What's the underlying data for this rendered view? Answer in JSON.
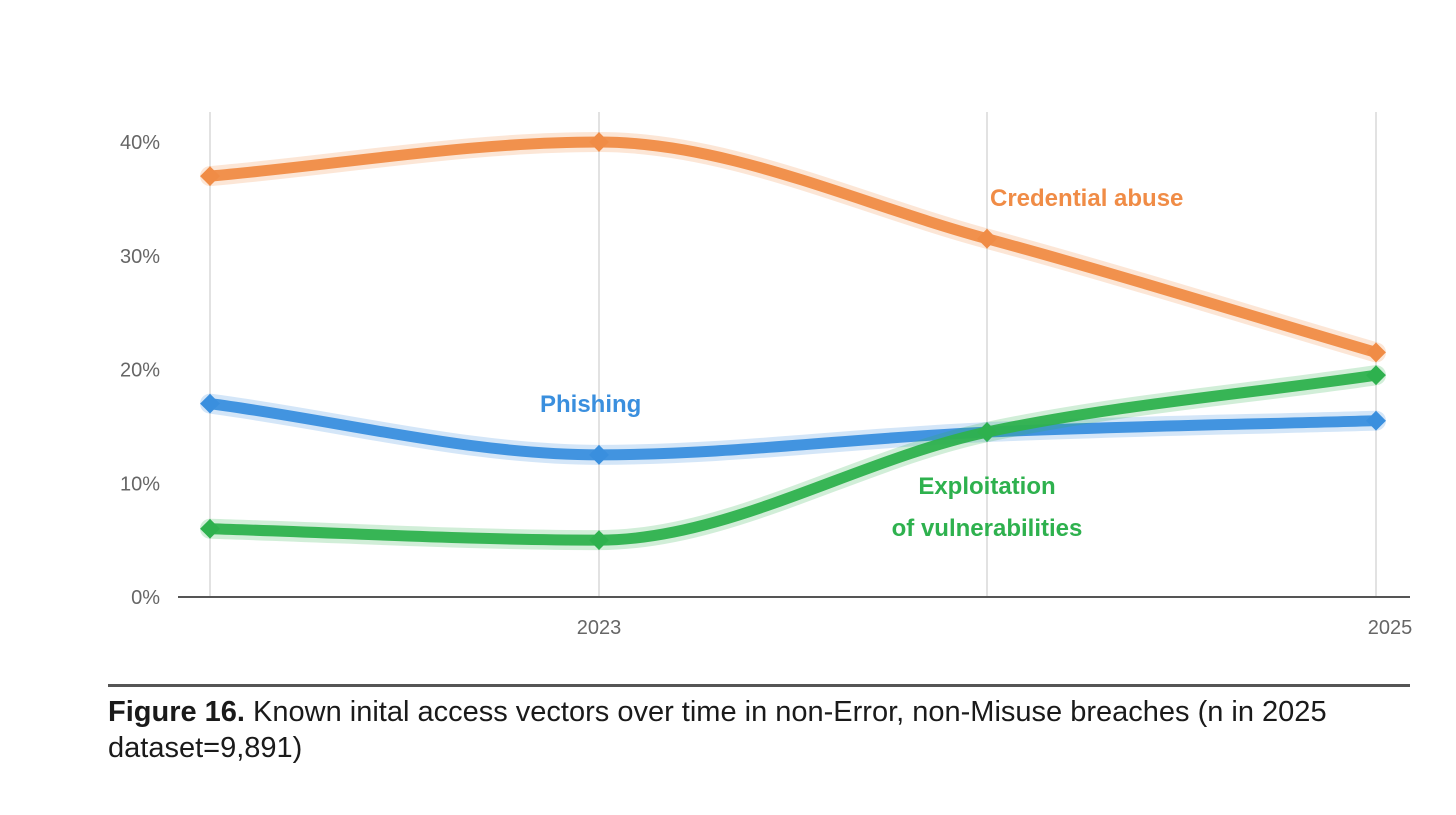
{
  "chart_data": {
    "type": "line",
    "x": [
      "",
      "2023",
      "",
      "2025"
    ],
    "xtick_labels": [
      "2023",
      "2025"
    ],
    "ylim": [
      0,
      40
    ],
    "yticks": [
      0,
      10,
      20,
      30,
      40
    ],
    "ytick_labels": [
      "0%",
      "10%",
      "20%",
      "30%",
      "40%"
    ],
    "grid": "vertical",
    "series": [
      {
        "name": "Credential abuse",
        "values": [
          37,
          40,
          31.5,
          21.5
        ],
        "color": "#f08c46"
      },
      {
        "name": "Phishing",
        "values": [
          17,
          12.5,
          14.5,
          15.5
        ],
        "color": "#3a8fde"
      },
      {
        "name": "Exploitation of vulnerabilities",
        "name_lines": [
          "Exploitation",
          "of vulnerabilities"
        ],
        "values": [
          6,
          5,
          14.5,
          19.5
        ],
        "color": "#2eb14e"
      }
    ]
  },
  "caption": {
    "figure_label": "Figure 16.",
    "text": " Known inital access vectors over time in non-Error, non-Misuse breaches (n in 2025 dataset=9,891)"
  }
}
